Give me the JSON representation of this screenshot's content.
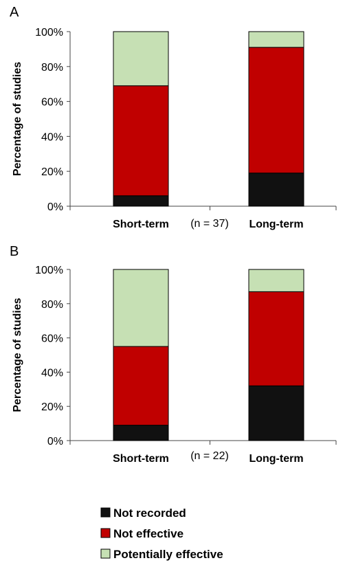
{
  "colors": {
    "not_recorded": "#111111",
    "not_effective": "#c00000",
    "potentially_effective": "#c6e0b4",
    "axis": "#444444"
  },
  "legend": [
    {
      "label": "Not recorded",
      "color": "#111111"
    },
    {
      "label": "Not effective",
      "color": "#c00000"
    },
    {
      "label": "Potentially effective",
      "color": "#c6e0b4"
    }
  ],
  "chart_data": [
    {
      "panel": "A",
      "type": "bar",
      "stacked": true,
      "categories": [
        "Short-term",
        "Long-term"
      ],
      "series": [
        {
          "name": "Not recorded",
          "values": [
            6,
            19
          ]
        },
        {
          "name": "Not effective",
          "values": [
            63,
            72
          ]
        },
        {
          "name": "Potentially effective",
          "values": [
            31,
            9
          ]
        }
      ],
      "ylabel": "Percentage of studies",
      "ylim": [
        0,
        100
      ],
      "yticks": [
        "0%",
        "20%",
        "40%",
        "60%",
        "80%",
        "100%"
      ],
      "note": "(n = 37)",
      "grid": false
    },
    {
      "panel": "B",
      "type": "bar",
      "stacked": true,
      "categories": [
        "Short-term",
        "Long-term"
      ],
      "series": [
        {
          "name": "Not recorded",
          "values": [
            9,
            32
          ]
        },
        {
          "name": "Not effective",
          "values": [
            46,
            55
          ]
        },
        {
          "name": "Potentially effective",
          "values": [
            45,
            13
          ]
        }
      ],
      "ylabel": "Percentage of studies",
      "ylim": [
        0,
        100
      ],
      "yticks": [
        "0%",
        "20%",
        "40%",
        "60%",
        "80%",
        "100%"
      ],
      "note": "(n = 22)",
      "grid": false
    }
  ]
}
